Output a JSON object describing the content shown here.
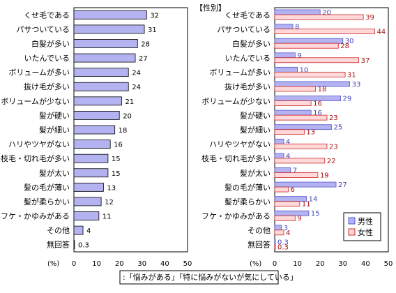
{
  "colors": {
    "overall_fill": "#b3b3f2",
    "male_fill": "#b3b3f2",
    "female_fill": "#ffd9d9",
    "male_stroke": "#5555cc",
    "female_stroke": "#cc2222",
    "male_value_text": "#4444bb",
    "female_value_text": "#aa1111"
  },
  "footnote": ":「悩みがある」「特に悩みがないが気にしている」",
  "chart_data": [
    {
      "type": "bar",
      "orientation": "horizontal",
      "categories": [
        "くせ毛である",
        "パサついている",
        "白髪が多い",
        "いたんでいる",
        "ボリュームが多い",
        "抜け毛が多い",
        "ボリュームが少ない",
        "髪が硬い",
        "髪が細い",
        "ハリやツヤがない",
        "枝毛・切れ毛が多い",
        "髪が太い",
        "髪の毛が薄い",
        "髪が柔らかい",
        "フケ・かゆみがある",
        "その他",
        "無回答"
      ],
      "values": [
        32,
        31,
        28,
        27,
        24,
        24,
        21,
        20,
        18,
        16,
        15,
        15,
        13,
        12,
        11,
        4,
        0.3
      ],
      "unit": "(%)",
      "xlim": [
        0,
        50
      ],
      "xticks": [
        0,
        10,
        20,
        30,
        40,
        50
      ],
      "grid": false
    },
    {
      "type": "bar",
      "orientation": "horizontal",
      "title": "【性別】",
      "categories": [
        "くせ毛である",
        "パサついている",
        "白髪が多い",
        "いたんでいる",
        "ボリュームが多い",
        "抜け毛が多い",
        "ボリュームが少ない",
        "髪が硬い",
        "髪が細い",
        "ハリやツヤがない",
        "枝毛・切れ毛が多い",
        "髪が太い",
        "髪の毛が薄い",
        "髪が柔らかい",
        "フケ・かゆみがある",
        "その他",
        "無回答"
      ],
      "series": [
        {
          "name": "男性",
          "values": [
            20,
            8,
            30,
            9,
            10,
            33,
            29,
            16,
            25,
            4,
            4,
            7,
            27,
            14,
            15,
            3,
            0.3
          ]
        },
        {
          "name": "女性",
          "values": [
            39,
            44,
            28,
            37,
            31,
            18,
            16,
            23,
            13,
            23,
            22,
            19,
            6,
            11,
            9,
            4,
            0.3
          ]
        }
      ],
      "unit": "(%)",
      "xlim": [
        0,
        50
      ],
      "xticks": [
        0,
        10,
        20,
        30,
        40,
        50
      ],
      "legend": "bottom-right",
      "grid": false
    }
  ]
}
